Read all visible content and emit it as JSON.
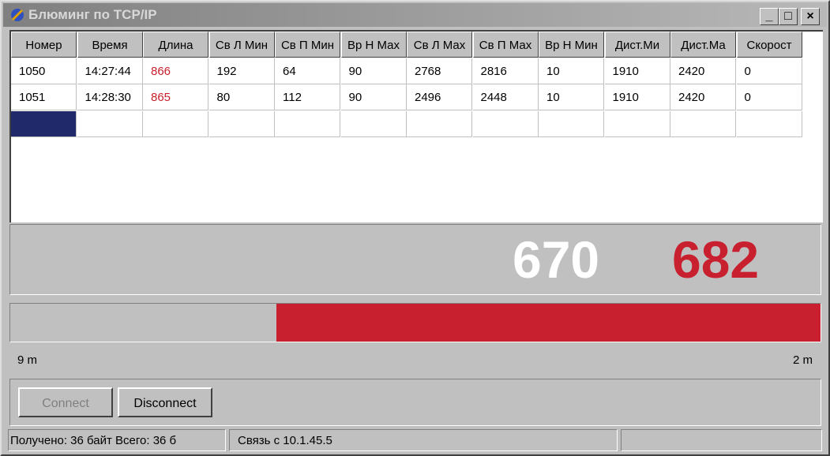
{
  "window": {
    "title": "Блюминг по TCP/IP"
  },
  "table": {
    "columns": [
      "Номер",
      "Время",
      "Длина",
      "Св Л Мин",
      "Св П Мин",
      "Вр Н Мах",
      "Св Л Мах",
      "Св П Мах",
      "Вр Н Мин",
      "Дист.Ми",
      "Дист.Ма",
      "Скорост"
    ],
    "rows": [
      [
        1050,
        "14:27:44",
        866,
        192,
        64,
        90,
        2768,
        2816,
        10,
        1910,
        2420,
        0
      ],
      [
        1051,
        "14:28:30",
        865,
        80,
        112,
        90,
        2496,
        2448,
        10,
        1910,
        2420,
        0
      ]
    ]
  },
  "display": {
    "current": 670,
    "target": 682
  },
  "scale": {
    "left_label": "9 m",
    "right_label": "2 m"
  },
  "buttons": {
    "connect": "Connect",
    "disconnect": "Disconnect"
  },
  "status": {
    "received": "Получено: 36 байт  Всего: 36 б",
    "connection": "Связь с 10.1.45.5"
  }
}
